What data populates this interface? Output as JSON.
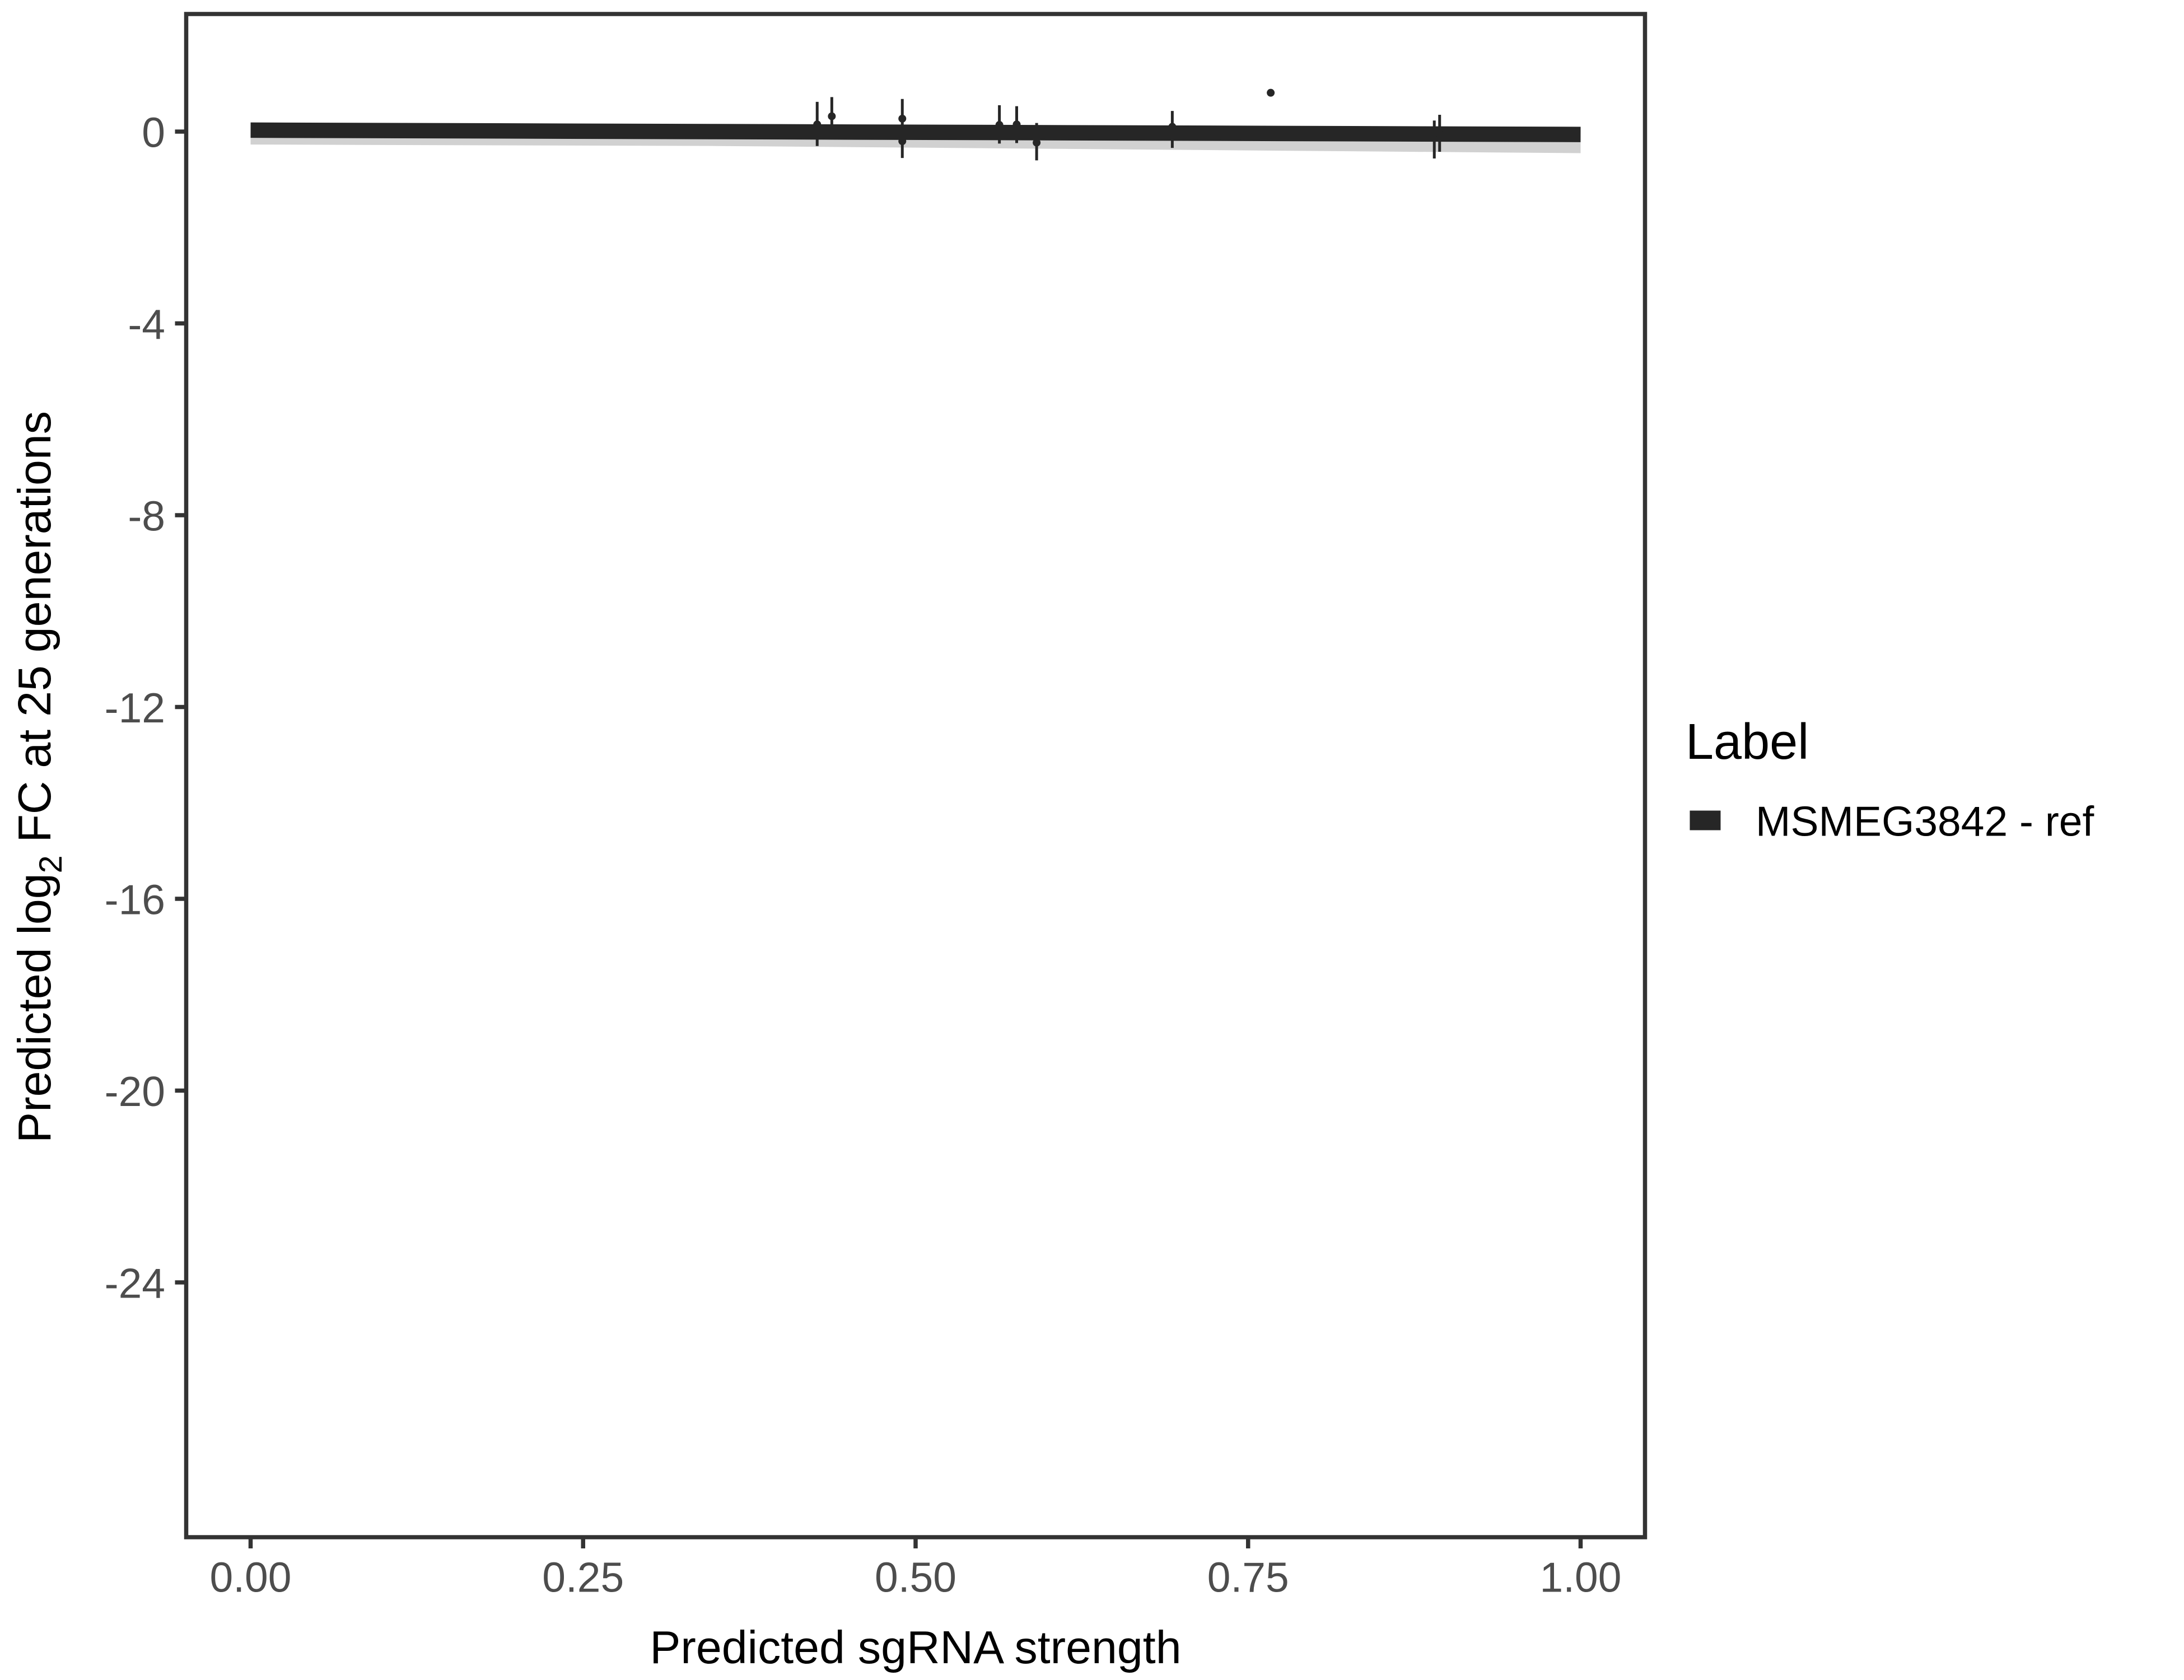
{
  "chart_data": {
    "type": "line",
    "title": "",
    "xlabel": "Predicted sgRNA strength",
    "ylabel": {
      "prefix": "Predicted  log",
      "subscript": "2",
      "suffix": " FC at 25 generations"
    },
    "xlim": [
      -0.1,
      1.1
    ],
    "ylim": [
      -29.5,
      2.5
    ],
    "x_ticks": [
      0,
      0.25,
      0.5,
      0.75,
      1
    ],
    "x_tick_labels": [
      "0.00",
      "0.25",
      "0.50",
      "0.75",
      "1.00"
    ],
    "y_ticks": [
      0,
      -4,
      -8,
      -12,
      -16,
      -20,
      -24
    ],
    "y_tick_labels": [
      "0",
      "-4",
      "-8",
      "-12",
      "-16",
      "-20",
      "-24"
    ],
    "grid": false,
    "legend": {
      "title": "Label",
      "position": "right",
      "entries": [
        "MSMEG3842 - ref"
      ]
    },
    "series": [
      {
        "name": "MSMEG3842 - ref",
        "color": "#262626",
        "fit_line": {
          "x": [
            0,
            0.35,
            1
          ],
          "y": [
            0.03,
            0.0,
            -0.06
          ]
        },
        "ribbon": {
          "x": [
            0,
            0.35,
            1
          ],
          "lower": [
            -0.27,
            -0.3,
            -0.45
          ],
          "upper": [
            0.1,
            0.08,
            0.02
          ]
        },
        "points": [
          {
            "x": 0.426,
            "y": 0.15,
            "ymin": -0.3,
            "ymax": 0.62
          },
          {
            "x": 0.437,
            "y": 0.32,
            "ymin": 0.12,
            "ymax": 0.72
          },
          {
            "x": 0.49,
            "y": 0.27,
            "ymin": -0.1,
            "ymax": 0.68
          },
          {
            "x": 0.49,
            "y": -0.2,
            "ymin": -0.55,
            "ymax": 0.1
          },
          {
            "x": 0.563,
            "y": 0.14,
            "ymin": -0.25,
            "ymax": 0.55
          },
          {
            "x": 0.576,
            "y": 0.15,
            "ymin": -0.24,
            "ymax": 0.53
          },
          {
            "x": 0.591,
            "y": -0.23,
            "ymin": -0.6,
            "ymax": 0.18
          },
          {
            "x": 0.693,
            "y": 0.1,
            "ymin": -0.34,
            "ymax": 0.43
          },
          {
            "x": 0.767,
            "y": 0.81,
            "ymin": 0.0,
            "ymax": 0.02
          },
          {
            "x": 0.89,
            "y": -0.1,
            "ymin": -0.56,
            "ymax": 0.23
          },
          {
            "x": 0.894,
            "y": -0.05,
            "ymin": -0.42,
            "ymax": 0.35
          }
        ]
      }
    ]
  }
}
